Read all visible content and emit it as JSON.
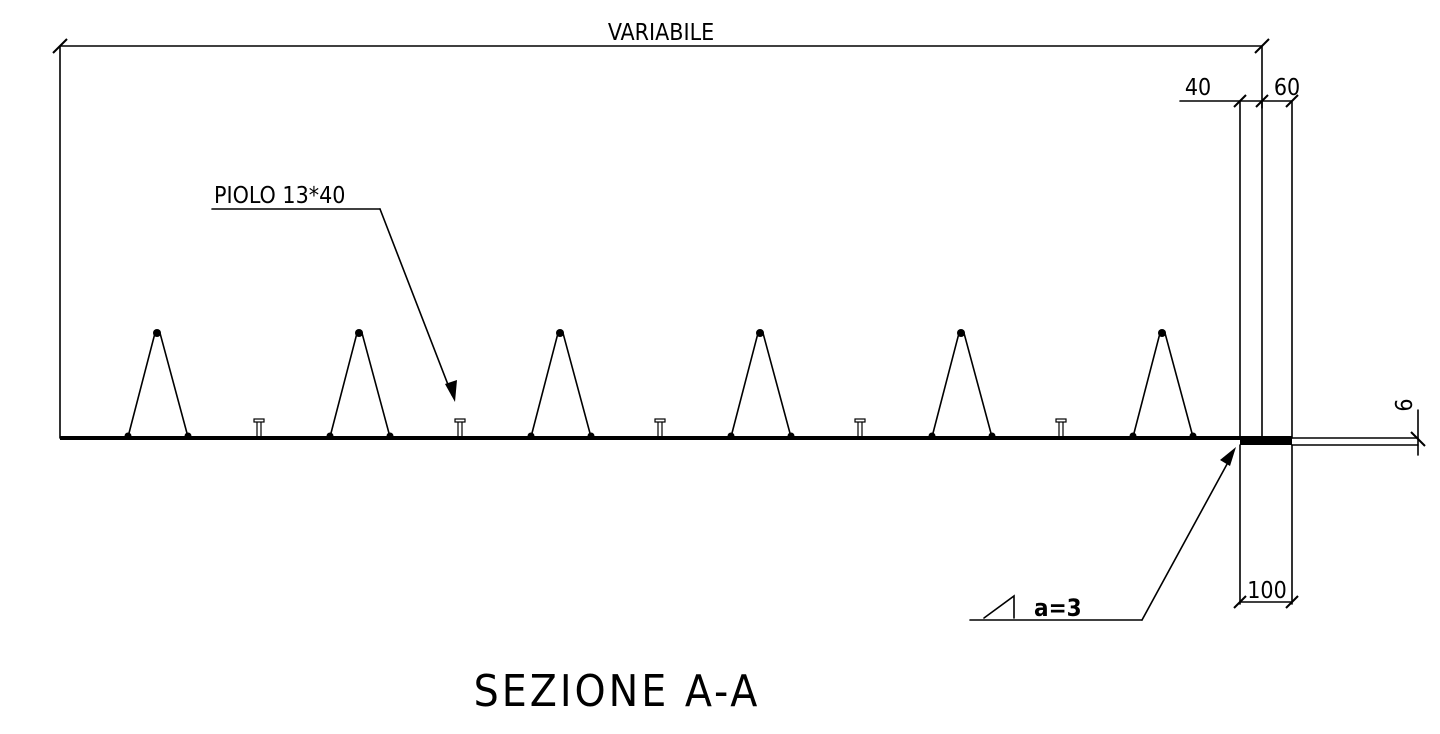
{
  "drawing": {
    "title": "SEZIONE A-A",
    "dimensions": {
      "overall_width": "VARIABILE",
      "left_thickness": "40",
      "right_thickness": "60",
      "base_width": "100",
      "plate_thickness": "6"
    },
    "annotations": {
      "stud_label": "PIOLO 13*40",
      "weld_label": "a=3"
    }
  }
}
